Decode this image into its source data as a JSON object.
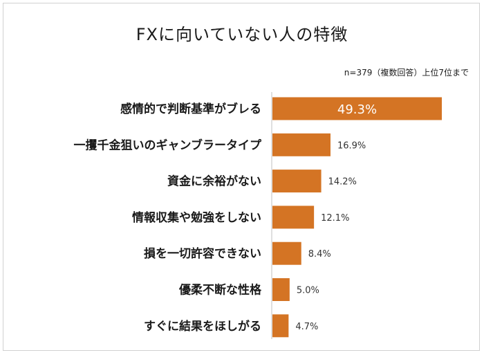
{
  "colors": {
    "bar": "#d47424",
    "text": "#1a1a1a"
  },
  "chart_data": {
    "type": "bar",
    "orientation": "horizontal",
    "title": "FXに向いていない人の特徴",
    "note": "n=379（複数回答）上位7位まで",
    "categories": [
      "感情的で判断基準がブレる",
      "一攫千金狙いのギャンブラータイプ",
      "資金に余裕がない",
      "情報収集や勉強をしない",
      "損を一切許容できない",
      "優柔不断な性格",
      "すぐに結果をほしがる"
    ],
    "values": [
      49.3,
      16.9,
      14.2,
      12.1,
      8.4,
      5.0,
      4.7
    ],
    "value_labels": [
      "49.3%",
      "16.9%",
      "14.2%",
      "12.1%",
      "8.4%",
      "5.0%",
      "4.7%"
    ],
    "xlim": [
      0,
      50
    ],
    "xlabel": "",
    "ylabel": "",
    "legend": "none",
    "grid": false
  }
}
